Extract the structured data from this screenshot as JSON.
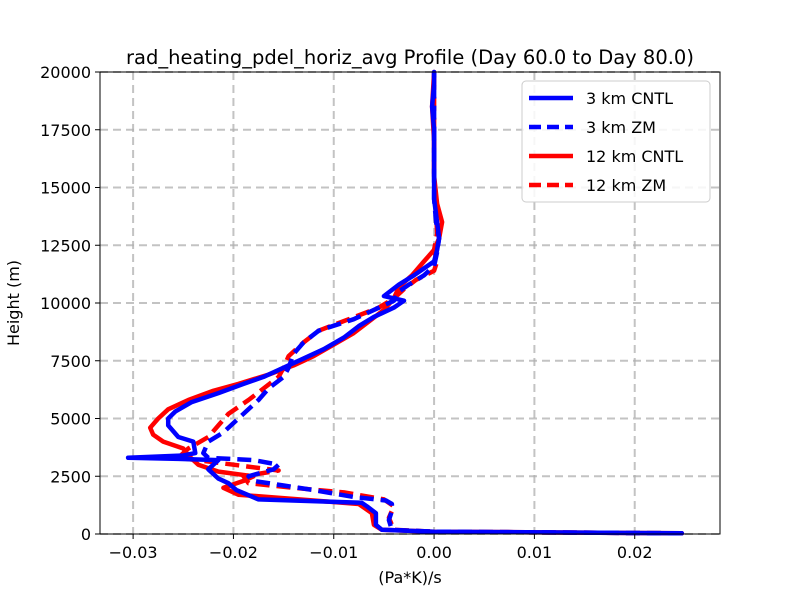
{
  "chart_data": {
    "type": "line",
    "title": "rad_heating_pdel_horiz_avg Profile (Day 60.0 to Day 80.0)",
    "xlabel": "(Pa*K)/s",
    "ylabel": "Height (m)",
    "xlim": [
      -0.0333,
      0.0285
    ],
    "ylim": [
      0,
      20000
    ],
    "xticks": [
      -0.03,
      -0.02,
      -0.01,
      0.0,
      0.01,
      0.02
    ],
    "xtick_labels": [
      "−0.03",
      "−0.02",
      "−0.01",
      "0.00",
      "0.01",
      "0.02"
    ],
    "yticks": [
      0,
      2500,
      5000,
      7500,
      10000,
      12500,
      15000,
      17500,
      20000
    ],
    "ytick_labels": [
      "0",
      "2500",
      "5000",
      "7500",
      "10000",
      "12500",
      "15000",
      "17500",
      "20000"
    ],
    "grid": true,
    "legend_position": "upper right",
    "series": [
      {
        "name": "3 km CNTL",
        "color": "#0000ff",
        "linestyle": "solid",
        "points": [
          [
            0.0247,
            30
          ],
          [
            0.0,
            100
          ],
          [
            -0.0052,
            180
          ],
          [
            -0.0058,
            400
          ],
          [
            -0.0058,
            900
          ],
          [
            -0.0067,
            1200
          ],
          [
            -0.0072,
            1350
          ],
          [
            -0.0175,
            1500
          ],
          [
            -0.0197,
            1900
          ],
          [
            -0.0205,
            2200
          ],
          [
            -0.0215,
            2400
          ],
          [
            -0.0225,
            2800
          ],
          [
            -0.0215,
            3200
          ],
          [
            -0.0255,
            3250
          ],
          [
            -0.0305,
            3300
          ],
          [
            -0.025,
            3400
          ],
          [
            -0.0238,
            3500
          ],
          [
            -0.024,
            4000
          ],
          [
            -0.0255,
            4200
          ],
          [
            -0.0265,
            4700
          ],
          [
            -0.0265,
            5000
          ],
          [
            -0.0258,
            5300
          ],
          [
            -0.0242,
            5700
          ],
          [
            -0.0215,
            6100
          ],
          [
            -0.019,
            6500
          ],
          [
            -0.017,
            6800
          ],
          [
            -0.015,
            7200
          ],
          [
            -0.013,
            7600
          ],
          [
            -0.011,
            8000
          ],
          [
            -0.009,
            8500
          ],
          [
            -0.0075,
            9000
          ],
          [
            -0.006,
            9400
          ],
          [
            -0.004,
            9800
          ],
          [
            -0.003,
            10100
          ],
          [
            -0.005,
            10300
          ],
          [
            -0.0035,
            10800
          ],
          [
            -0.002,
            11200
          ],
          [
            0.0,
            11800
          ],
          [
            0.0003,
            12300
          ],
          [
            0.0005,
            12800
          ],
          [
            0.0003,
            13500
          ],
          [
            0.0,
            14500
          ],
          [
            0.0,
            16000
          ],
          [
            0.0,
            17500
          ],
          [
            -0.0002,
            18500
          ],
          [
            0.0,
            19500
          ],
          [
            0.0,
            20000
          ]
        ]
      },
      {
        "name": "3 km ZM",
        "color": "#0000ff",
        "linestyle": "dashed",
        "points": [
          [
            0.0247,
            30
          ],
          [
            0.0,
            100
          ],
          [
            -0.0042,
            180
          ],
          [
            -0.0045,
            600
          ],
          [
            -0.0042,
            1000
          ],
          [
            -0.0042,
            1300
          ],
          [
            -0.0048,
            1450
          ],
          [
            -0.008,
            1600
          ],
          [
            -0.012,
            1900
          ],
          [
            -0.015,
            2100
          ],
          [
            -0.018,
            2300
          ],
          [
            -0.0185,
            2500
          ],
          [
            -0.016,
            2800
          ],
          [
            -0.0155,
            3000
          ],
          [
            -0.018,
            3200
          ],
          [
            -0.0225,
            3300
          ],
          [
            -0.023,
            3500
          ],
          [
            -0.0225,
            4000
          ],
          [
            -0.021,
            4400
          ],
          [
            -0.0195,
            5000
          ],
          [
            -0.0175,
            5800
          ],
          [
            -0.0165,
            6300
          ],
          [
            -0.015,
            6800
          ],
          [
            -0.0145,
            7200
          ],
          [
            -0.014,
            7800
          ],
          [
            -0.013,
            8300
          ],
          [
            -0.0115,
            8800
          ],
          [
            -0.008,
            9300
          ],
          [
            -0.006,
            9700
          ],
          [
            -0.004,
            10100
          ],
          [
            -0.0035,
            10500
          ],
          [
            -0.0025,
            10800
          ],
          [
            -0.001,
            11200
          ],
          [
            0.0,
            11600
          ],
          [
            0.0003,
            12200
          ],
          [
            0.0005,
            12800
          ],
          [
            0.0002,
            13500
          ],
          [
            0.0,
            14500
          ],
          [
            0.0,
            16000
          ],
          [
            0.0,
            17500
          ],
          [
            0.0,
            18500
          ],
          [
            0.0,
            20000
          ]
        ]
      },
      {
        "name": "12 km CNTL",
        "color": "#ff0000",
        "linestyle": "solid",
        "points": [
          [
            0.0247,
            30
          ],
          [
            0.0,
            100
          ],
          [
            -0.0052,
            180
          ],
          [
            -0.006,
            400
          ],
          [
            -0.0062,
            900
          ],
          [
            -0.0075,
            1300
          ],
          [
            -0.012,
            1450
          ],
          [
            -0.0195,
            1700
          ],
          [
            -0.021,
            2000
          ],
          [
            -0.019,
            2300
          ],
          [
            -0.018,
            2500
          ],
          [
            -0.0215,
            2700
          ],
          [
            -0.0235,
            3000
          ],
          [
            -0.0245,
            3400
          ],
          [
            -0.025,
            3700
          ],
          [
            -0.027,
            4000
          ],
          [
            -0.028,
            4300
          ],
          [
            -0.0283,
            4600
          ],
          [
            -0.0275,
            5000
          ],
          [
            -0.0265,
            5400
          ],
          [
            -0.0245,
            5800
          ],
          [
            -0.022,
            6200
          ],
          [
            -0.0195,
            6500
          ],
          [
            -0.0165,
            6900
          ],
          [
            -0.014,
            7300
          ],
          [
            -0.012,
            7700
          ],
          [
            -0.01,
            8200
          ],
          [
            -0.008,
            8700
          ],
          [
            -0.0065,
            9200
          ],
          [
            -0.005,
            9700
          ],
          [
            -0.004,
            10200
          ],
          [
            -0.0035,
            10700
          ],
          [
            -0.0022,
            11200
          ],
          [
            -0.001,
            11800
          ],
          [
            0.0,
            12300
          ],
          [
            0.0005,
            12800
          ],
          [
            0.0008,
            13500
          ],
          [
            0.0003,
            14300
          ],
          [
            0.0,
            15500
          ],
          [
            0.0,
            17000
          ],
          [
            -0.0002,
            18500
          ],
          [
            0.0,
            20000
          ]
        ]
      },
      {
        "name": "12 km ZM",
        "color": "#ff0000",
        "linestyle": "dashed",
        "points": [
          [
            0.0247,
            30
          ],
          [
            0.0,
            100
          ],
          [
            -0.004,
            180
          ],
          [
            -0.0045,
            700
          ],
          [
            -0.004,
            1200
          ],
          [
            -0.005,
            1500
          ],
          [
            -0.009,
            1800
          ],
          [
            -0.014,
            2000
          ],
          [
            -0.0185,
            2200
          ],
          [
            -0.019,
            2500
          ],
          [
            -0.0155,
            2750
          ],
          [
            -0.02,
            3000
          ],
          [
            -0.0255,
            3300
          ],
          [
            -0.0245,
            3700
          ],
          [
            -0.0225,
            4200
          ],
          [
            -0.0215,
            4700
          ],
          [
            -0.0205,
            5200
          ],
          [
            -0.0185,
            5800
          ],
          [
            -0.017,
            6300
          ],
          [
            -0.0155,
            6800
          ],
          [
            -0.015,
            7200
          ],
          [
            -0.0145,
            7700
          ],
          [
            -0.013,
            8300
          ],
          [
            -0.0115,
            8800
          ],
          [
            -0.0085,
            9300
          ],
          [
            -0.0055,
            9800
          ],
          [
            -0.004,
            10200
          ],
          [
            -0.003,
            10600
          ],
          [
            -0.0018,
            11000
          ],
          [
            0.0,
            11400
          ],
          [
            0.0003,
            11800
          ],
          [
            0.0,
            12300
          ],
          [
            0.0003,
            13000
          ],
          [
            0.0002,
            14000
          ],
          [
            0.0,
            15500
          ],
          [
            0.0,
            17000
          ],
          [
            0.0,
            18500
          ],
          [
            0.0,
            20000
          ]
        ]
      }
    ]
  }
}
